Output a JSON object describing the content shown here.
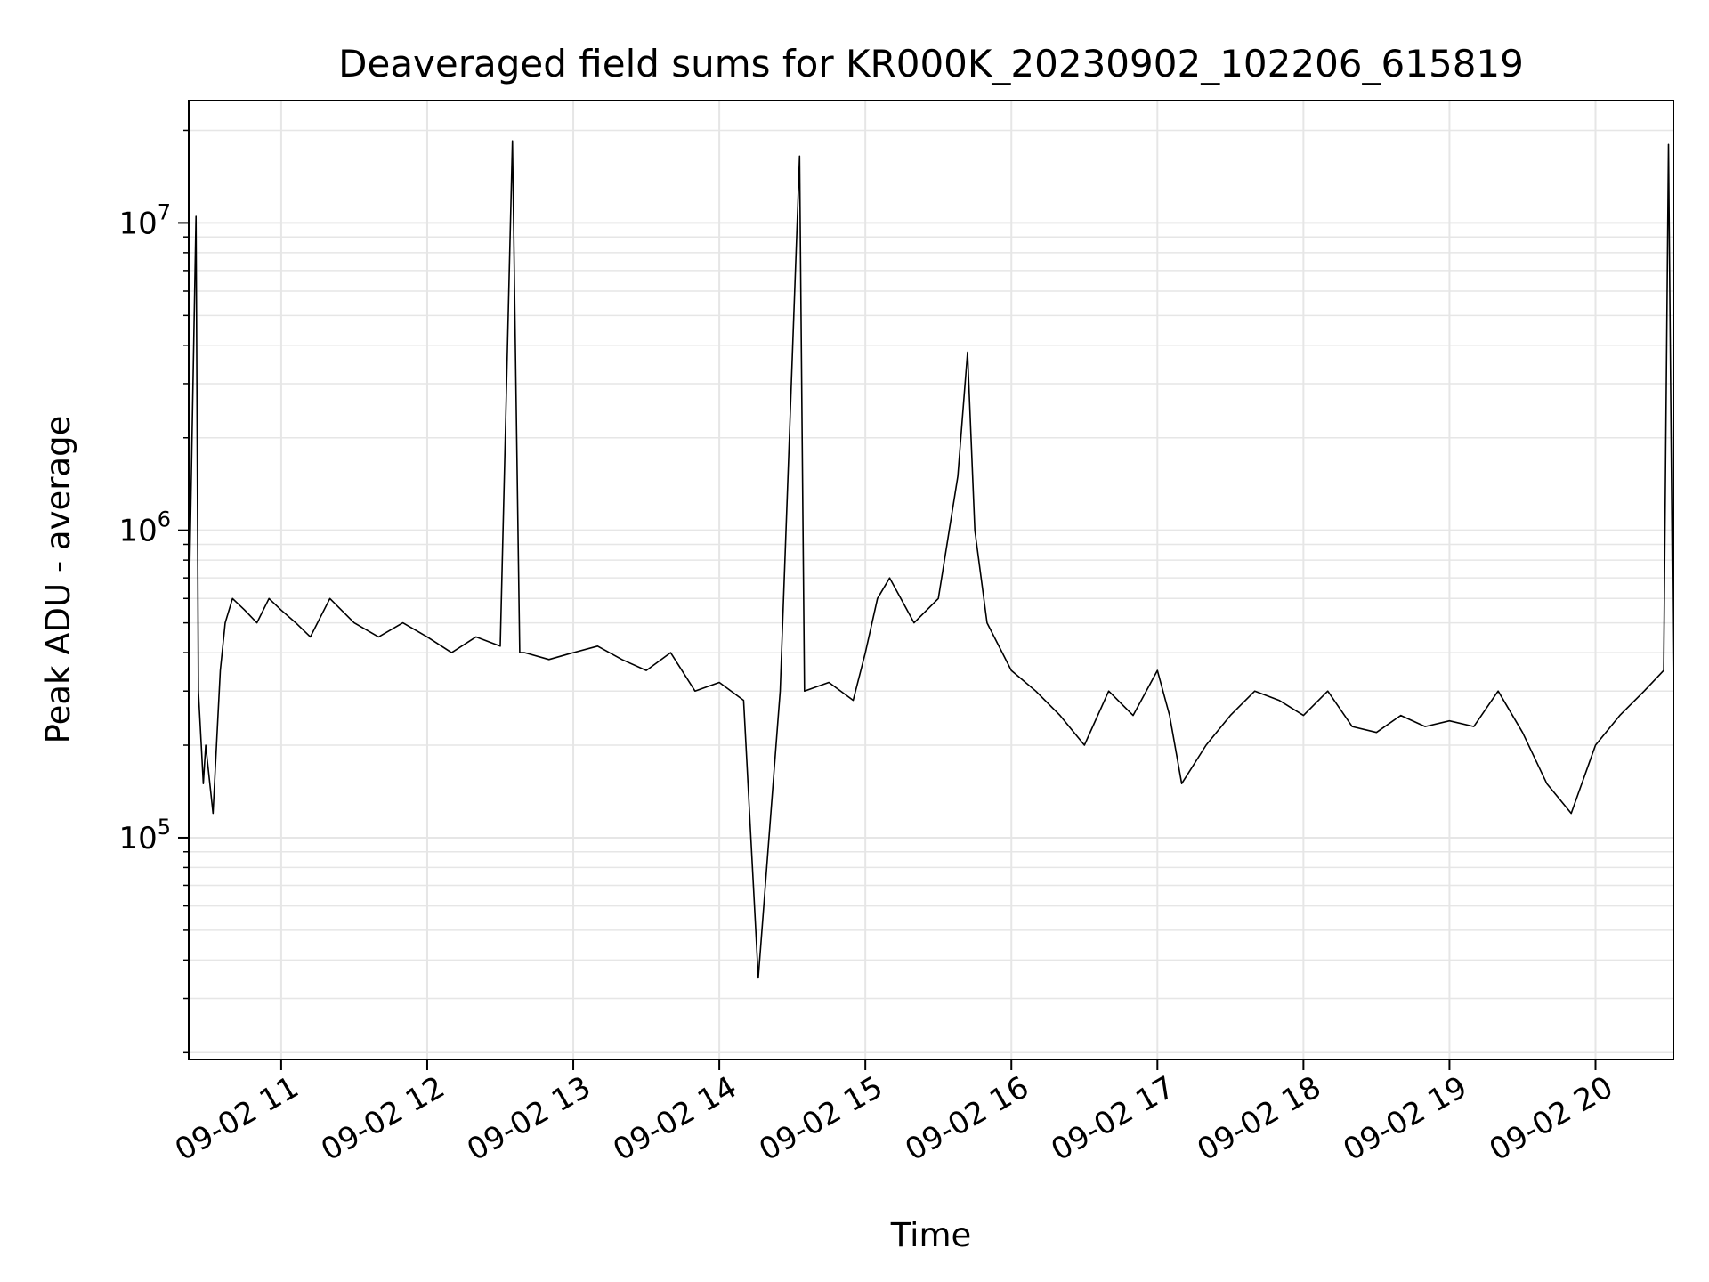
{
  "chart_data": {
    "type": "line",
    "title": "Deaveraged field sums for KR000K_20230902_102206_615819",
    "xlabel": "Time",
    "ylabel": "Peak ADU - average",
    "yscale": "log",
    "grid": true,
    "line_color": "#000000",
    "grid_color": "#e6e6e6",
    "xlim": [
      "2023-09-02 10:22",
      "2023-09-02 20:32"
    ],
    "ylim": [
      19000,
      25000000
    ],
    "x_ticks": [
      {
        "value": "2023-09-02 11:00",
        "label": "09-02 11"
      },
      {
        "value": "2023-09-02 12:00",
        "label": "09-02 12"
      },
      {
        "value": "2023-09-02 13:00",
        "label": "09-02 13"
      },
      {
        "value": "2023-09-02 14:00",
        "label": "09-02 14"
      },
      {
        "value": "2023-09-02 15:00",
        "label": "09-02 15"
      },
      {
        "value": "2023-09-02 16:00",
        "label": "09-02 16"
      },
      {
        "value": "2023-09-02 17:00",
        "label": "09-02 17"
      },
      {
        "value": "2023-09-02 18:00",
        "label": "09-02 18"
      },
      {
        "value": "2023-09-02 19:00",
        "label": "09-02 19"
      },
      {
        "value": "2023-09-02 20:00",
        "label": "09-02 20"
      }
    ],
    "y_ticks": [
      {
        "value": 100000,
        "base": "10",
        "exp": "5"
      },
      {
        "value": 1000000,
        "base": "10",
        "exp": "6"
      },
      {
        "value": 10000000,
        "base": "10",
        "exp": "7"
      }
    ],
    "series": [
      {
        "x": [
          "2023-09-02 10:22",
          "2023-09-02 10:25",
          "2023-09-02 10:26",
          "2023-09-02 10:28",
          "2023-09-02 10:29",
          "2023-09-02 10:32",
          "2023-09-02 10:35",
          "2023-09-02 10:37",
          "2023-09-02 10:40",
          "2023-09-02 10:45",
          "2023-09-02 10:50",
          "2023-09-02 10:55",
          "2023-09-02 11:00",
          "2023-09-02 11:06",
          "2023-09-02 11:12",
          "2023-09-02 11:20",
          "2023-09-02 11:30",
          "2023-09-02 11:40",
          "2023-09-02 11:50",
          "2023-09-02 12:00",
          "2023-09-02 12:10",
          "2023-09-02 12:20",
          "2023-09-02 12:30",
          "2023-09-02 12:35",
          "2023-09-02 12:38",
          "2023-09-02 12:40",
          "2023-09-02 12:50",
          "2023-09-02 13:00",
          "2023-09-02 13:10",
          "2023-09-02 13:20",
          "2023-09-02 13:30",
          "2023-09-02 13:40",
          "2023-09-02 13:50",
          "2023-09-02 14:00",
          "2023-09-02 14:10",
          "2023-09-02 14:16",
          "2023-09-02 14:25",
          "2023-09-02 14:33",
          "2023-09-02 14:35",
          "2023-09-02 14:45",
          "2023-09-02 14:55",
          "2023-09-02 15:00",
          "2023-09-02 15:05",
          "2023-09-02 15:10",
          "2023-09-02 15:20",
          "2023-09-02 15:30",
          "2023-09-02 15:38",
          "2023-09-02 15:42",
          "2023-09-02 15:45",
          "2023-09-02 15:50",
          "2023-09-02 16:00",
          "2023-09-02 16:10",
          "2023-09-02 16:20",
          "2023-09-02 16:30",
          "2023-09-02 16:40",
          "2023-09-02 16:50",
          "2023-09-02 17:00",
          "2023-09-02 17:05",
          "2023-09-02 17:10",
          "2023-09-02 17:20",
          "2023-09-02 17:30",
          "2023-09-02 17:40",
          "2023-09-02 17:50",
          "2023-09-02 18:00",
          "2023-09-02 18:10",
          "2023-09-02 18:20",
          "2023-09-02 18:30",
          "2023-09-02 18:40",
          "2023-09-02 18:50",
          "2023-09-02 19:00",
          "2023-09-02 19:10",
          "2023-09-02 19:20",
          "2023-09-02 19:30",
          "2023-09-02 19:40",
          "2023-09-02 19:50",
          "2023-09-02 20:00",
          "2023-09-02 20:10",
          "2023-09-02 20:20",
          "2023-09-02 20:28",
          "2023-09-02 20:30",
          "2023-09-02 20:32"
        ],
        "y": [
          500000,
          10500000,
          300000,
          150000,
          200000,
          120000,
          350000,
          500000,
          600000,
          550000,
          500000,
          600000,
          550000,
          500000,
          450000,
          600000,
          500000,
          450000,
          500000,
          450000,
          400000,
          450000,
          420000,
          18500000,
          400000,
          400000,
          380000,
          400000,
          420000,
          380000,
          350000,
          400000,
          300000,
          320000,
          280000,
          35000,
          300000,
          16500000,
          300000,
          320000,
          280000,
          400000,
          600000,
          700000,
          500000,
          600000,
          1500000,
          3800000,
          1000000,
          500000,
          350000,
          300000,
          250000,
          200000,
          300000,
          250000,
          350000,
          250000,
          150000,
          200000,
          250000,
          300000,
          280000,
          250000,
          300000,
          230000,
          220000,
          250000,
          230000,
          240000,
          230000,
          300000,
          220000,
          150000,
          120000,
          200000,
          250000,
          300000,
          350000,
          18000000,
          300000
        ]
      }
    ]
  }
}
